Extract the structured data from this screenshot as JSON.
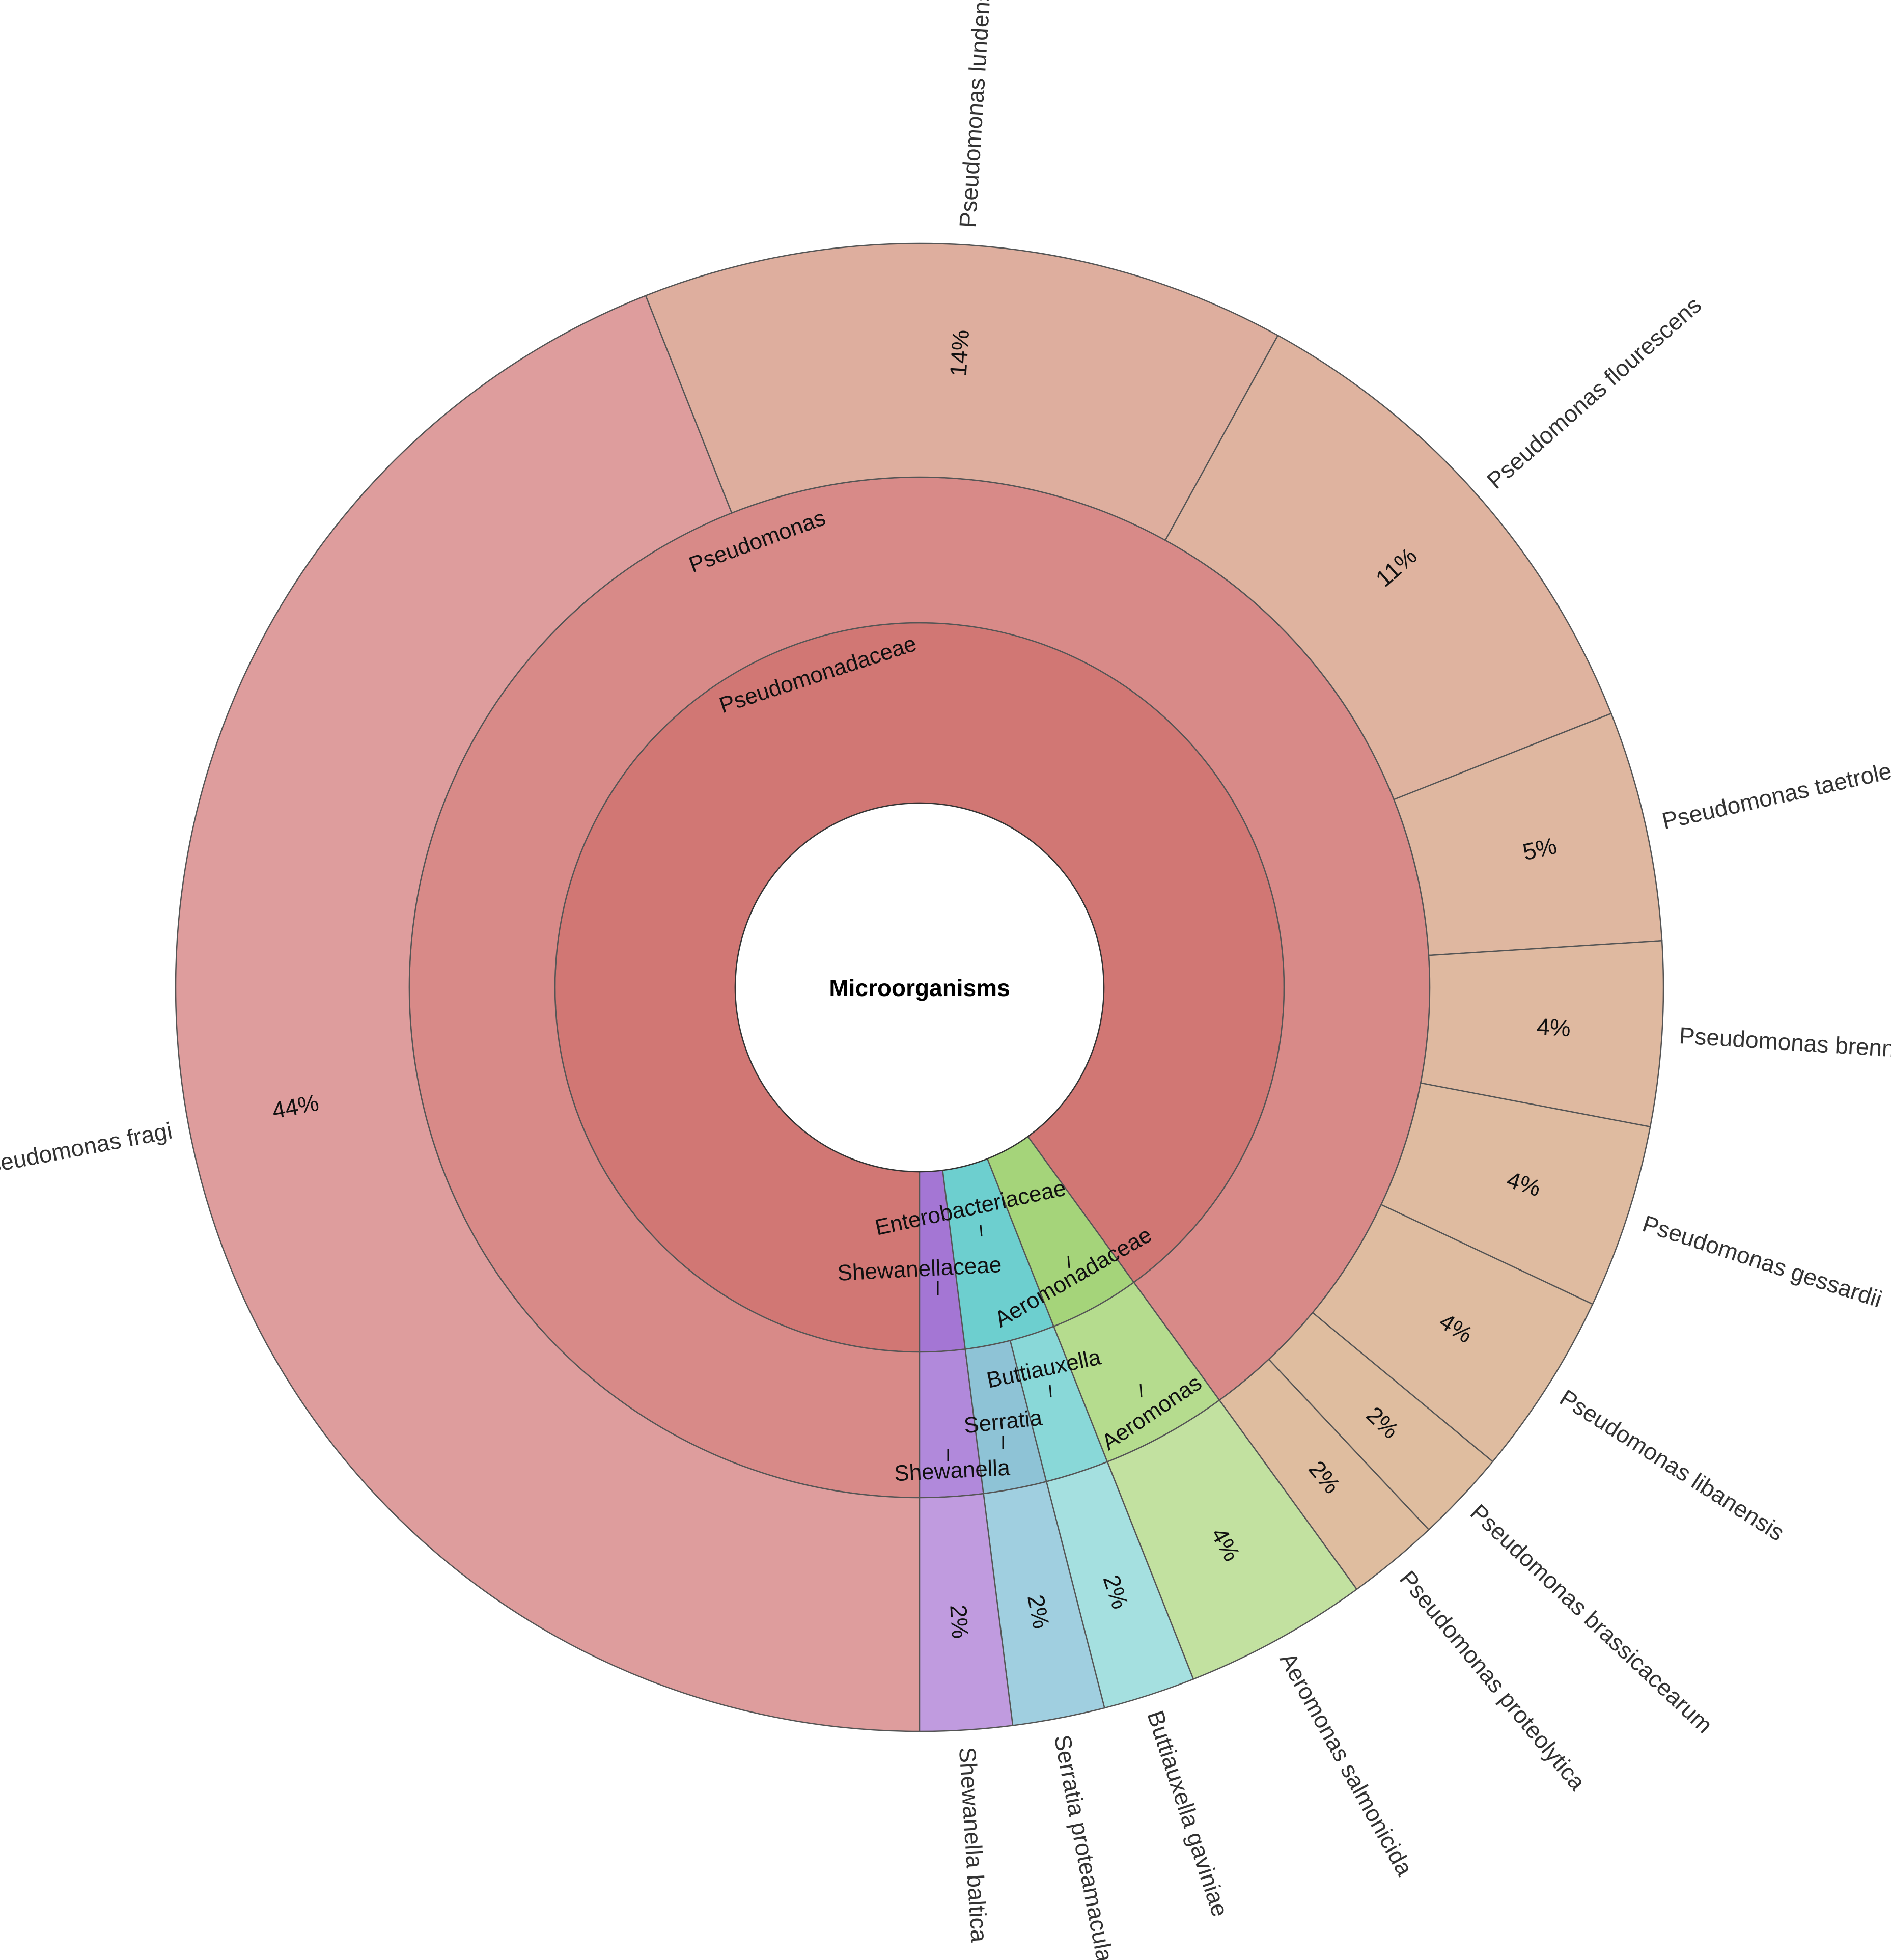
{
  "chart_data": {
    "type": "sunburst",
    "root_label": "Microorganisms",
    "families": [
      {
        "id": "pseudomonadaceae",
        "label": "Pseudomonadaceae",
        "color": "#D17774"
      },
      {
        "id": "shewanellaceae",
        "label": "Shewanellaceae",
        "color": "#A476D4"
      },
      {
        "id": "enterobacteriaceae",
        "label": "Enterobacteriaceae",
        "color": "#6DCFCF"
      },
      {
        "id": "aeromonadaceae",
        "label": "Aeromonadaceae",
        "color": "#A5D47A"
      }
    ],
    "genera": [
      {
        "id": "pseudomonas",
        "label": "Pseudomonas",
        "family": "pseudomonadaceae",
        "color": "#D88A88"
      },
      {
        "id": "shewanella",
        "label": "Shewanella",
        "family": "shewanellaceae",
        "color": "#B189DB"
      },
      {
        "id": "serratia",
        "label": "Serratia",
        "family": "enterobacteriaceae",
        "color": "#8EC3D6"
      },
      {
        "id": "buttiauxella",
        "label": "Buttiauxella",
        "family": "enterobacteriaceae",
        "color": "#89D8D8"
      },
      {
        "id": "aeromonas",
        "label": "Aeromonas",
        "family": "aeromonadaceae",
        "color": "#B5DC8E"
      }
    ],
    "species": [
      {
        "label": "Pseudomonas fragi",
        "percent_label": "44%",
        "value": 44,
        "genus": "pseudomonas",
        "color": "#DE9D9D"
      },
      {
        "label": "Pseudomonas lundensis",
        "percent_label": "14%",
        "value": 14,
        "genus": "pseudomonas",
        "color": "#DEAE9E"
      },
      {
        "label": "Pseudomonas flourescens",
        "percent_label": "11%",
        "value": 11,
        "genus": "pseudomonas",
        "color": "#DFB39F"
      },
      {
        "label": "Pseudomonas taetrolens",
        "percent_label": "5%",
        "value": 5,
        "genus": "pseudomonas",
        "color": "#DFB7A0"
      },
      {
        "label": "Pseudomonas brenneri",
        "percent_label": "4%",
        "value": 4,
        "genus": "pseudomonas",
        "color": "#DFB9A0"
      },
      {
        "label": "Pseudomonas gessardii",
        "percent_label": "4%",
        "value": 4,
        "genus": "pseudomonas",
        "color": "#DFBBA0"
      },
      {
        "label": "Pseudomonas libanensis",
        "percent_label": "4%",
        "value": 4,
        "genus": "pseudomonas",
        "color": "#DFBCA0"
      },
      {
        "label": "Pseudomonas brassicacearum",
        "percent_label": "2%",
        "value": 2,
        "genus": "pseudomonas",
        "color": "#DFBD9F"
      },
      {
        "label": "Pseudomonas proteolytica",
        "percent_label": "2%",
        "value": 2,
        "genus": "pseudomonas",
        "color": "#DFBD9F"
      },
      {
        "label": "Aeromonas salmonicida",
        "percent_label": "4%",
        "value": 4,
        "genus": "aeromonas",
        "color": "#C2E1A0"
      },
      {
        "label": "Buttiauxella gaviniae",
        "percent_label": "2%",
        "value": 2,
        "genus": "buttiauxella",
        "color": "#A5E0E0"
      },
      {
        "label": "Serratia proteamaculans",
        "percent_label": "2%",
        "value": 2,
        "genus": "serratia",
        "color": "#A0CFE0"
      },
      {
        "label": "Shewanella baltica",
        "percent_label": "2%",
        "value": 2,
        "genus": "shewanella",
        "color": "#C09BDF"
      }
    ]
  }
}
